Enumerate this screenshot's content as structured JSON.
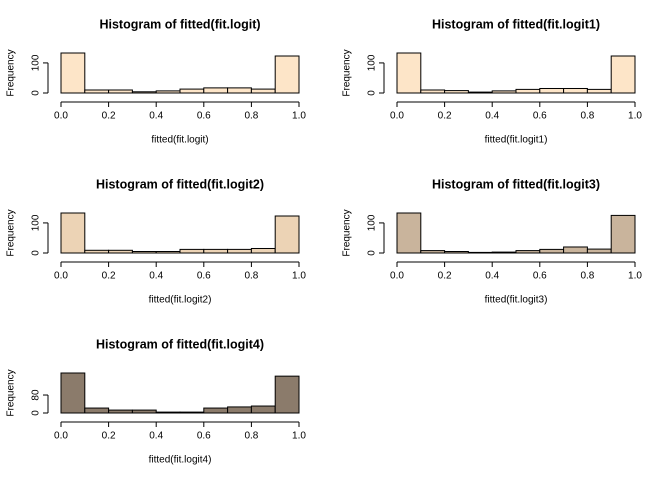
{
  "chart_data": [
    {
      "type": "histogram",
      "title": "Histogram of fitted(fit.logit)",
      "xlabel": "fitted(fit.logit)",
      "ylabel": "Frequency",
      "color": "#fde5c8",
      "bins": [
        0,
        0.1,
        0.2,
        0.3,
        0.4,
        0.5,
        0.6,
        0.7,
        0.8,
        0.9,
        1
      ],
      "values": [
        133,
        10,
        10,
        4,
        7,
        13,
        17,
        17,
        13,
        123
      ],
      "xlim": [
        0,
        1
      ],
      "xticks": [
        {
          "value": 0,
          "label": "0.0"
        },
        0.2,
        0.4,
        0.6,
        0.8,
        {
          "value": 1,
          "label": "1.0"
        }
      ],
      "ylim": [
        0,
        133
      ],
      "yticks": [
        0,
        100
      ]
    },
    {
      "type": "histogram",
      "title": "Histogram of fitted(fit.logit1)",
      "xlabel": "fitted(fit.logit1)",
      "ylabel": "Frequency",
      "color": "#fde5c8",
      "bins": [
        0,
        0.1,
        0.2,
        0.3,
        0.4,
        0.5,
        0.6,
        0.7,
        0.8,
        0.9,
        1
      ],
      "values": [
        133,
        10,
        8,
        3,
        7,
        12,
        15,
        15,
        12,
        123
      ],
      "xlim": [
        0,
        1
      ],
      "xticks": [
        {
          "value": 0,
          "label": "0.0"
        },
        0.2,
        0.4,
        0.6,
        0.8,
        {
          "value": 1,
          "label": "1.0"
        }
      ],
      "ylim": [
        0,
        133
      ],
      "yticks": [
        0,
        100
      ]
    },
    {
      "type": "histogram",
      "title": "Histogram of fitted(fit.logit2)",
      "xlabel": "fitted(fit.logit2)",
      "ylabel": "Frequency",
      "color": "#ecd3b5",
      "bins": [
        0,
        0.1,
        0.2,
        0.3,
        0.4,
        0.5,
        0.6,
        0.7,
        0.8,
        0.9,
        1
      ],
      "values": [
        133,
        9,
        9,
        5,
        5,
        12,
        12,
        12,
        15,
        123
      ],
      "xlim": [
        0,
        1
      ],
      "xticks": [
        {
          "value": 0,
          "label": "0.0"
        },
        0.2,
        0.4,
        0.6,
        0.8,
        {
          "value": 1,
          "label": "1.0"
        }
      ],
      "ylim": [
        0,
        133
      ],
      "yticks": [
        0,
        100
      ]
    },
    {
      "type": "histogram",
      "title": "Histogram of fitted(fit.logit3)",
      "xlabel": "fitted(fit.logit3)",
      "ylabel": "Frequency",
      "color": "#c9b49c",
      "bins": [
        0,
        0.1,
        0.2,
        0.3,
        0.4,
        0.5,
        0.6,
        0.7,
        0.8,
        0.9,
        1
      ],
      "values": [
        133,
        8,
        5,
        2,
        3,
        8,
        12,
        20,
        13,
        125
      ],
      "xlim": [
        0,
        1
      ],
      "xticks": [
        {
          "value": 0,
          "label": "0.0"
        },
        0.2,
        0.4,
        0.6,
        0.8,
        {
          "value": 1,
          "label": "1.0"
        }
      ],
      "ylim": [
        0,
        133
      ],
      "yticks": [
        0,
        100
      ]
    },
    {
      "type": "histogram",
      "title": "Histogram of fitted(fit.logit4)",
      "xlabel": "fitted(fit.logit4)",
      "ylabel": "Frequency",
      "color": "#8b7b6b",
      "bins": [
        0,
        0.1,
        0.2,
        0.3,
        0.4,
        0.5,
        0.6,
        0.7,
        0.8,
        0.9,
        1
      ],
      "values": [
        178,
        22,
        13,
        13,
        4,
        4,
        22,
        27,
        31,
        164
      ],
      "xlim": [
        0,
        1
      ],
      "xticks": [
        {
          "value": 0,
          "label": "0.0"
        },
        0.2,
        0.4,
        0.6,
        0.8,
        {
          "value": 1,
          "label": "1.0"
        }
      ],
      "ylim": [
        0,
        178
      ],
      "yticks": [
        0,
        80
      ]
    }
  ]
}
